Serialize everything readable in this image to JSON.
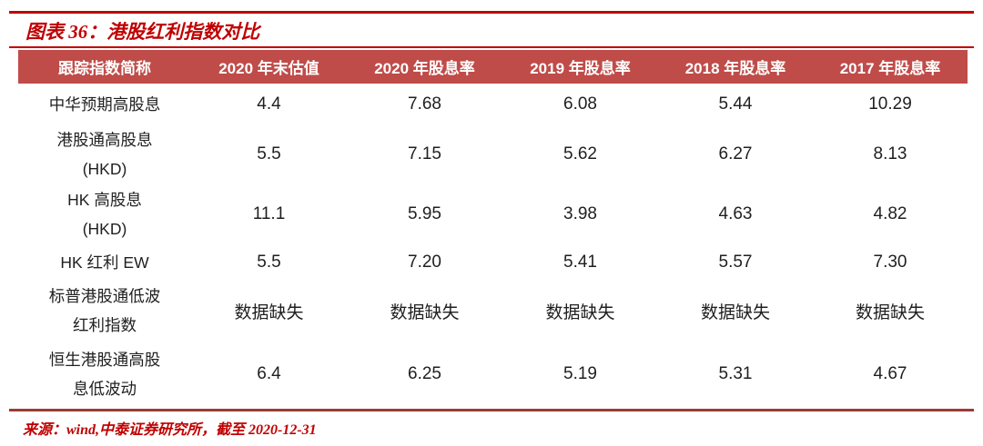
{
  "header": {
    "title": "图表 36：港股红利指数对比"
  },
  "colors": {
    "accent_red": "#C00000",
    "table_header_bg": "#BF4C49",
    "table_header_text": "#FFFFFF",
    "bottom_rule": "#9E3A36",
    "body_text": "#1F1F1F"
  },
  "table": {
    "columns": [
      "跟踪指数简称",
      "2020 年末估值",
      "2020 年股息率",
      "2019 年股息率",
      "2018 年股息率",
      "2017 年股息率"
    ],
    "rows": [
      {
        "name": "中华预期高股息",
        "values": [
          "4.4",
          "7.68",
          "6.08",
          "5.44",
          "10.29"
        ]
      },
      {
        "name": "港股通高股息\n(HKD)",
        "values": [
          "5.5",
          "7.15",
          "5.62",
          "6.27",
          "8.13"
        ]
      },
      {
        "name": "HK 高股息\n(HKD)",
        "values": [
          "11.1",
          "5.95",
          "3.98",
          "4.63",
          "4.82"
        ]
      },
      {
        "name": "HK 红利 EW",
        "values": [
          "5.5",
          "7.20",
          "5.41",
          "5.57",
          "7.30"
        ]
      },
      {
        "name": "标普港股通低波\n红利指数",
        "values": [
          "数据缺失",
          "数据缺失",
          "数据缺失",
          "数据缺失",
          "数据缺失"
        ]
      },
      {
        "name": "恒生港股通高股\n息低波动",
        "values": [
          "6.4",
          "6.25",
          "5.19",
          "5.31",
          "4.67"
        ]
      }
    ]
  },
  "footer": {
    "source": "来源：wind,中泰证券研究所，截至 2020-12-31"
  },
  "chart_data": {
    "type": "table",
    "title": "图表 36：港股红利指数对比",
    "columns": [
      "跟踪指数简称",
      "2020 年末估值",
      "2020 年股息率",
      "2019 年股息率",
      "2018 年股息率",
      "2017 年股息率"
    ],
    "rows": [
      [
        "中华预期高股息",
        "4.4",
        "7.68",
        "6.08",
        "5.44",
        "10.29"
      ],
      [
        "港股通高股息 (HKD)",
        "5.5",
        "7.15",
        "5.62",
        "6.27",
        "8.13"
      ],
      [
        "HK 高股息 (HKD)",
        "11.1",
        "5.95",
        "3.98",
        "4.63",
        "4.82"
      ],
      [
        "HK 红利 EW",
        "5.5",
        "7.20",
        "5.41",
        "5.57",
        "7.30"
      ],
      [
        "标普港股通低波红利指数",
        "数据缺失",
        "数据缺失",
        "数据缺失",
        "数据缺失",
        "数据缺失"
      ],
      [
        "恒生港股通高股息低波动",
        "6.4",
        "6.25",
        "5.19",
        "5.31",
        "4.67"
      ]
    ]
  }
}
